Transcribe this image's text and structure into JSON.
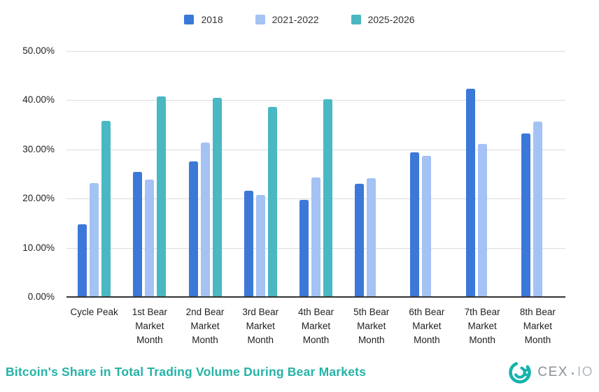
{
  "chart_data": {
    "type": "bar",
    "title": "Bitcoin's Share in Total Trading Volume During Bear Markets",
    "xlabel": "",
    "ylabel": "",
    "ylim": [
      0,
      50
    ],
    "grid": true,
    "legend_position": "top",
    "y_ticks": [
      {
        "label": "50.00%",
        "value": 50
      },
      {
        "label": "40.00%",
        "value": 40
      },
      {
        "label": "30.00%",
        "value": 30
      },
      {
        "label": "20.00%",
        "value": 20
      },
      {
        "label": "10.00%",
        "value": 10
      },
      {
        "label": "0.00%",
        "value": 0
      }
    ],
    "categories": [
      "Cycle Peak",
      "1st Bear Market Month",
      "2nd Bear Market Month",
      "3rd Bear Market Month",
      "4th Bear Market Month",
      "5th Bear Market Month",
      "6th Bear Market Month",
      "7th Bear Market Month",
      "8th Bear Market Month"
    ],
    "series": [
      {
        "name": "2018",
        "color": "#3C78D8",
        "values": [
          14.8,
          25.4,
          27.5,
          21.6,
          19.8,
          23.0,
          29.4,
          42.3,
          33.3
        ]
      },
      {
        "name": "2021-2022",
        "color": "#A4C2F4",
        "values": [
          23.1,
          23.8,
          31.4,
          20.8,
          24.3,
          24.1,
          28.7,
          31.1,
          35.7
        ]
      },
      {
        "name": "2025-2026",
        "color": "#49B8C2",
        "values": [
          35.8,
          40.8,
          40.5,
          38.7,
          40.2,
          null,
          null,
          null,
          null
        ]
      }
    ]
  },
  "footer": {
    "title": "Bitcoin's Share in Total Trading Volume During Bear Markets",
    "logo": {
      "text_primary": "CEX",
      "text_secondary": "IO",
      "mark_color": "#14b3ac"
    }
  },
  "colors": {
    "gridline": "#dcdcdc",
    "axis": "#333333",
    "title": "#25b2a6"
  }
}
